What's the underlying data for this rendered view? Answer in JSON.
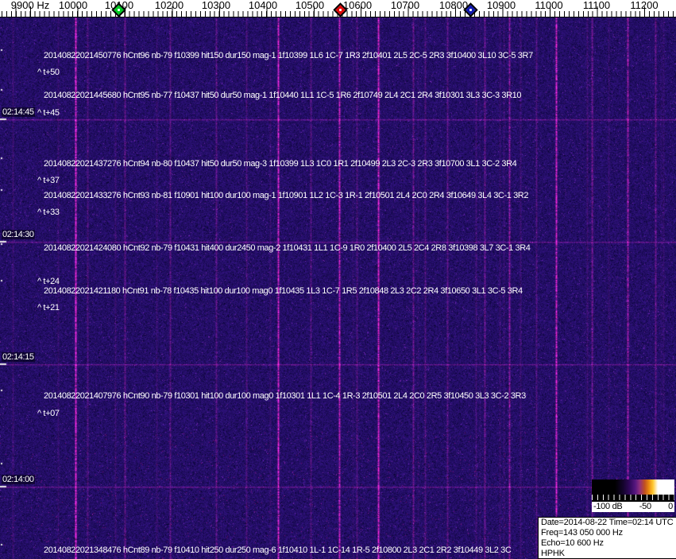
{
  "freq_axis": {
    "labels": [
      "9900 Hz",
      "10000",
      "10100",
      "10200",
      "10300",
      "10400",
      "10500",
      "10600",
      "10700",
      "10800",
      "10900",
      "11000",
      "11100",
      "11200"
    ]
  },
  "markers": {
    "green": {
      "color": "#00cc22"
    },
    "red": {
      "color": "#dd0808"
    },
    "blue": {
      "color": "#1018b0"
    }
  },
  "time_axis": {
    "labels": [
      "02:14:45",
      "02:14:30",
      "02:14:15",
      "02:14:00"
    ]
  },
  "events": [
    {
      "text": "20140822021450776 hCnt96 nb-79 f10399 hit150 dur150 mag-1 1f10399 1L6 1C-7 1R3 2f10401 2L5 2C-5 2R3 3f10400 3L10 3C-5 3R7",
      "tag": "^ t+50"
    },
    {
      "text": "20140822021445680 hCnt95 nb-77 f10437 hit50 dur50 mag-1 1f10440 1L1 1C-5 1R6 2f10749 2L4 2C1 2R4 3f10301 3L3 3C-3 3R10",
      "tag": "^ t+45"
    },
    {
      "text": "20140822021437276 hCnt94 nb-80 f10437 hit50 dur50 mag-3 1f10399 1L3 1C0 1R1 2f10499 2L3 2C-3 2R3 3f10700 3L1 3C-2 3R4",
      "tag": "^ t+37"
    },
    {
      "text": "20140822021433276 hCnt93 nb-81 f10901 hit100 dur100 mag-1 1f10901 1L2 1C-3 1R-1 2f10501 2L4 2C0 2R4 3f10649 3L4 3C-1 3R2",
      "tag": "^ t+33"
    },
    {
      "text": "20140822021424080 hCnt92 nb-79 f10431 hit400 dur2450 mag-2 1f10431 1L1 1C-9 1R0 2f10400 2L5 2C4 2R8 3f10398 3L7 3C-1 3R4",
      "tag": "^ t+24"
    },
    {
      "text": "20140822021421180 hCnt91 nb-78 f10435 hit100 dur100 mag0 1f10435 1L3 1C-7 1R5 2f10848 2L3 2C2 2R4 3f10650 3L1 3C-5 3R4",
      "tag": "^ t+21"
    },
    {
      "text": "20140822021407976 hCnt90 nb-79 f10301 hit100 dur100 mag0 1f10301 1L1 1C-4 1R-3 2f10501 2L4 2C0 2R5 3f10450 3L3 3C-2 3R3",
      "tag": "^ t+07"
    },
    {
      "text": "20140822021348476 hCnt89 nb-79 f10410 hit250 dur250 mag-6 1f10410 1L-1 1C-14 1R-5 2f10800 2L3 2C1 2R2 3f10449 3L2 3C"
    }
  ],
  "legend": {
    "ticks": [
      "-100 dB",
      "-50",
      "0"
    ]
  },
  "info_box": {
    "lines": [
      "Date=2014-08-22 Time=02:14 UTC",
      "Freq=143 050 000 Hz",
      "Echo=10 600 Hz",
      "HPHK"
    ]
  },
  "colors": {
    "spectrogram_background": "#1a1066",
    "carrier_line": "#cc2266",
    "overlay_text": "#ffffff"
  }
}
